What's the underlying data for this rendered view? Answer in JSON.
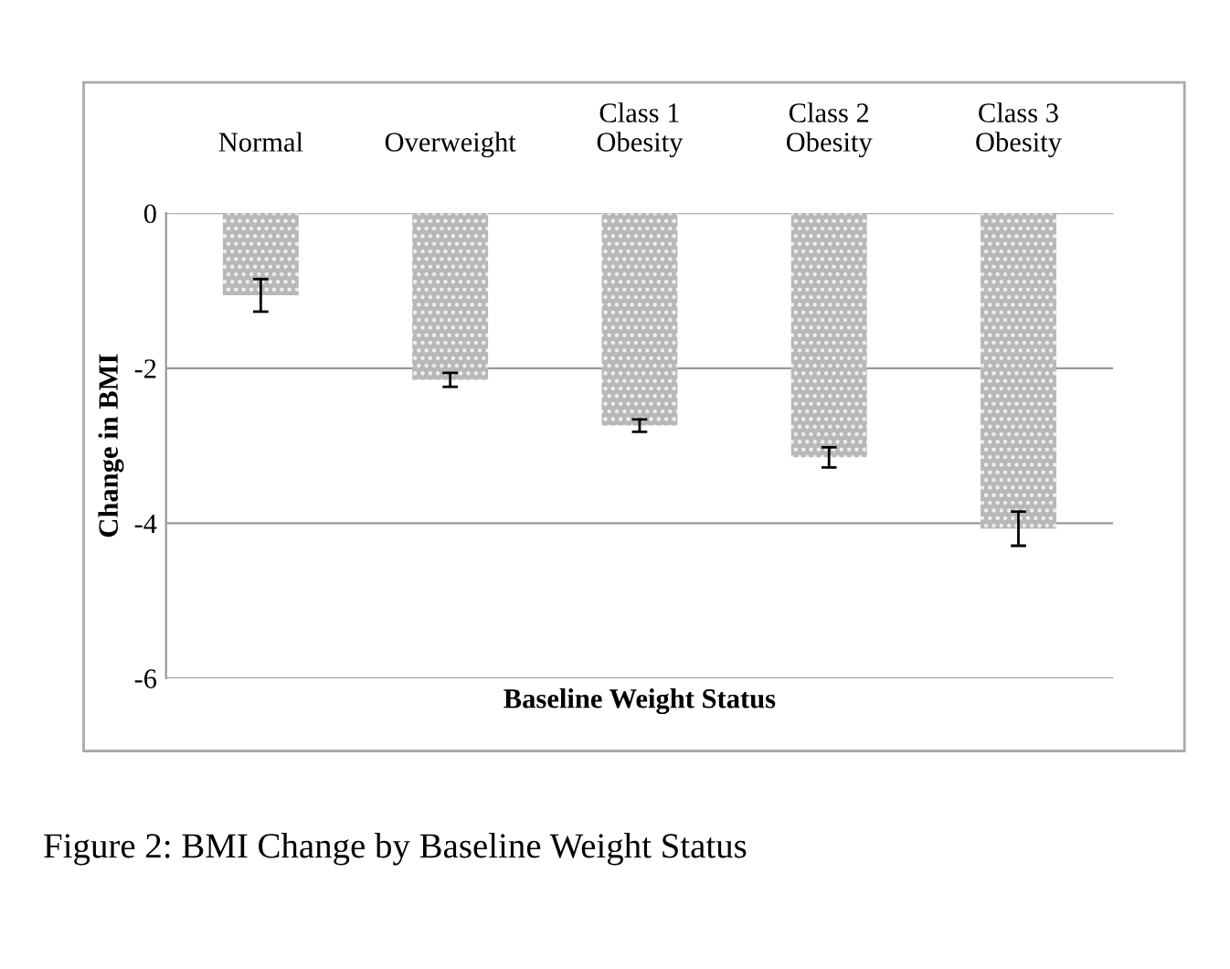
{
  "chart_data": {
    "type": "bar",
    "categories": [
      "Normal",
      "Overweight",
      "Class 1\nObesity",
      "Class 2\nObesity",
      "Class 3\nObesity"
    ],
    "values": [
      -1.06,
      -2.15,
      -2.74,
      -3.15,
      -4.07
    ],
    "errors": [
      0.21,
      0.09,
      0.08,
      0.13,
      0.22
    ],
    "color": "#b8b8b8",
    "ylabel": "Change in BMI",
    "xlabel": "Baseline Weight Status",
    "ylim": [
      -6,
      0
    ],
    "yticks": [
      -6,
      -4,
      -2,
      0
    ],
    "grid": "y",
    "annotations": [
      "Figure 2: BMI Change by Baseline Weight Status"
    ]
  }
}
